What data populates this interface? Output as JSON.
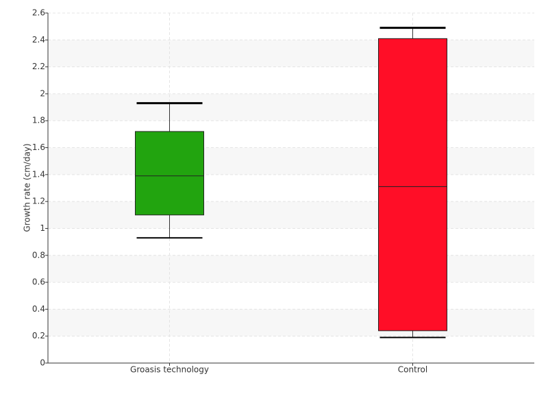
{
  "chart_data": {
    "type": "box",
    "y_label": "Growth rate (cm/day)",
    "categories": [
      "Groasis technology",
      "Control"
    ],
    "boxes": [
      {
        "whisker_low": 0.93,
        "q1": 1.1,
        "median": 1.39,
        "q3": 1.72,
        "whisker_high": 1.93,
        "color": "#22a40f"
      },
      {
        "whisker_low": 0.19,
        "q1": 0.24,
        "median": 1.31,
        "q3": 2.41,
        "whisker_high": 2.49,
        "color": "#ff0e27"
      }
    ],
    "ylim": [
      0,
      2.6
    ],
    "yticks": [
      0,
      0.2,
      0.4,
      0.6,
      0.8,
      1,
      1.2,
      1.4,
      1.6,
      1.8,
      2,
      2.2,
      2.4,
      2.6
    ],
    "grid": true
  }
}
